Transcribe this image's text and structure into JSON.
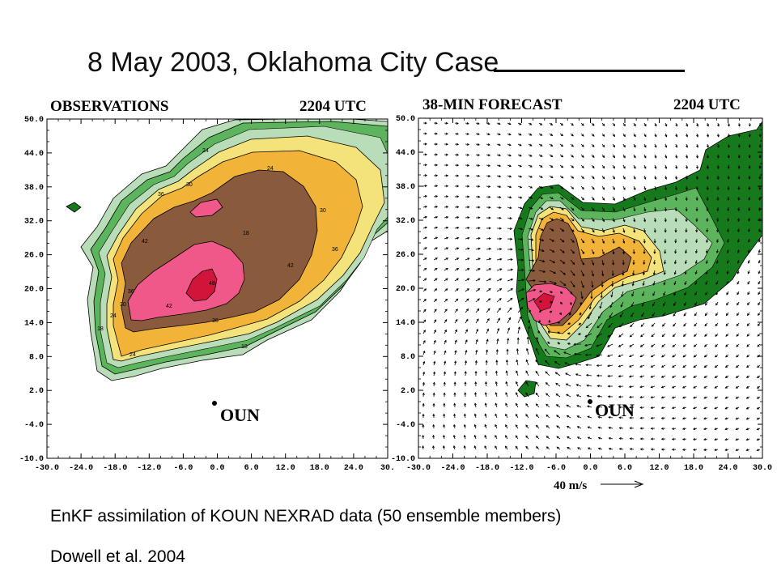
{
  "slide": {
    "title": "8 May 2003, Oklahoma City Case",
    "caption_line1": "EnKF assimilation of KOUN NEXRAD data (50 ensemble members)",
    "caption_line2": "Dowell et al. 2004"
  },
  "panels": [
    {
      "heading_left": "OBSERVATIONS",
      "heading_right": "2204 UTC"
    },
    {
      "heading_left": "38-MIN FORECAST",
      "heading_right": "2204 UTC"
    }
  ],
  "axes": {
    "x_ticks": [
      "-30.0",
      "-24.0",
      "-18.0",
      "-12.0",
      "-6.0",
      "0.0",
      "6.0",
      "12.0",
      "18.0",
      "24.0",
      "30."
    ],
    "x_ticks_right": [
      "-30.0",
      "-24.0",
      "-18.0",
      "-12.0",
      "-6.0",
      "0.0",
      "6.0",
      "12.0",
      "18.0",
      "24.0",
      "30.0"
    ],
    "y_ticks": [
      "50.0",
      "44.0",
      "38.0",
      "32.0",
      "26.0",
      "20.0",
      "14.0",
      "8.0",
      "2.0",
      "-4.0",
      "-10.0"
    ]
  },
  "radar_site_label": "OUN",
  "vector_scale_label": "40 m/s",
  "contour_labels_obs": [
    "18",
    "24",
    "30",
    "36",
    "42",
    "48"
  ],
  "colors": {
    "light_green": "#b9dcb9",
    "mid_green": "#5cb55c",
    "dark_green": "#167a1c",
    "yellow": "#f4e27a",
    "orange": "#f2b339",
    "brown": "#8a5a3c",
    "pink": "#f0588a",
    "red": "#d2143a"
  }
}
